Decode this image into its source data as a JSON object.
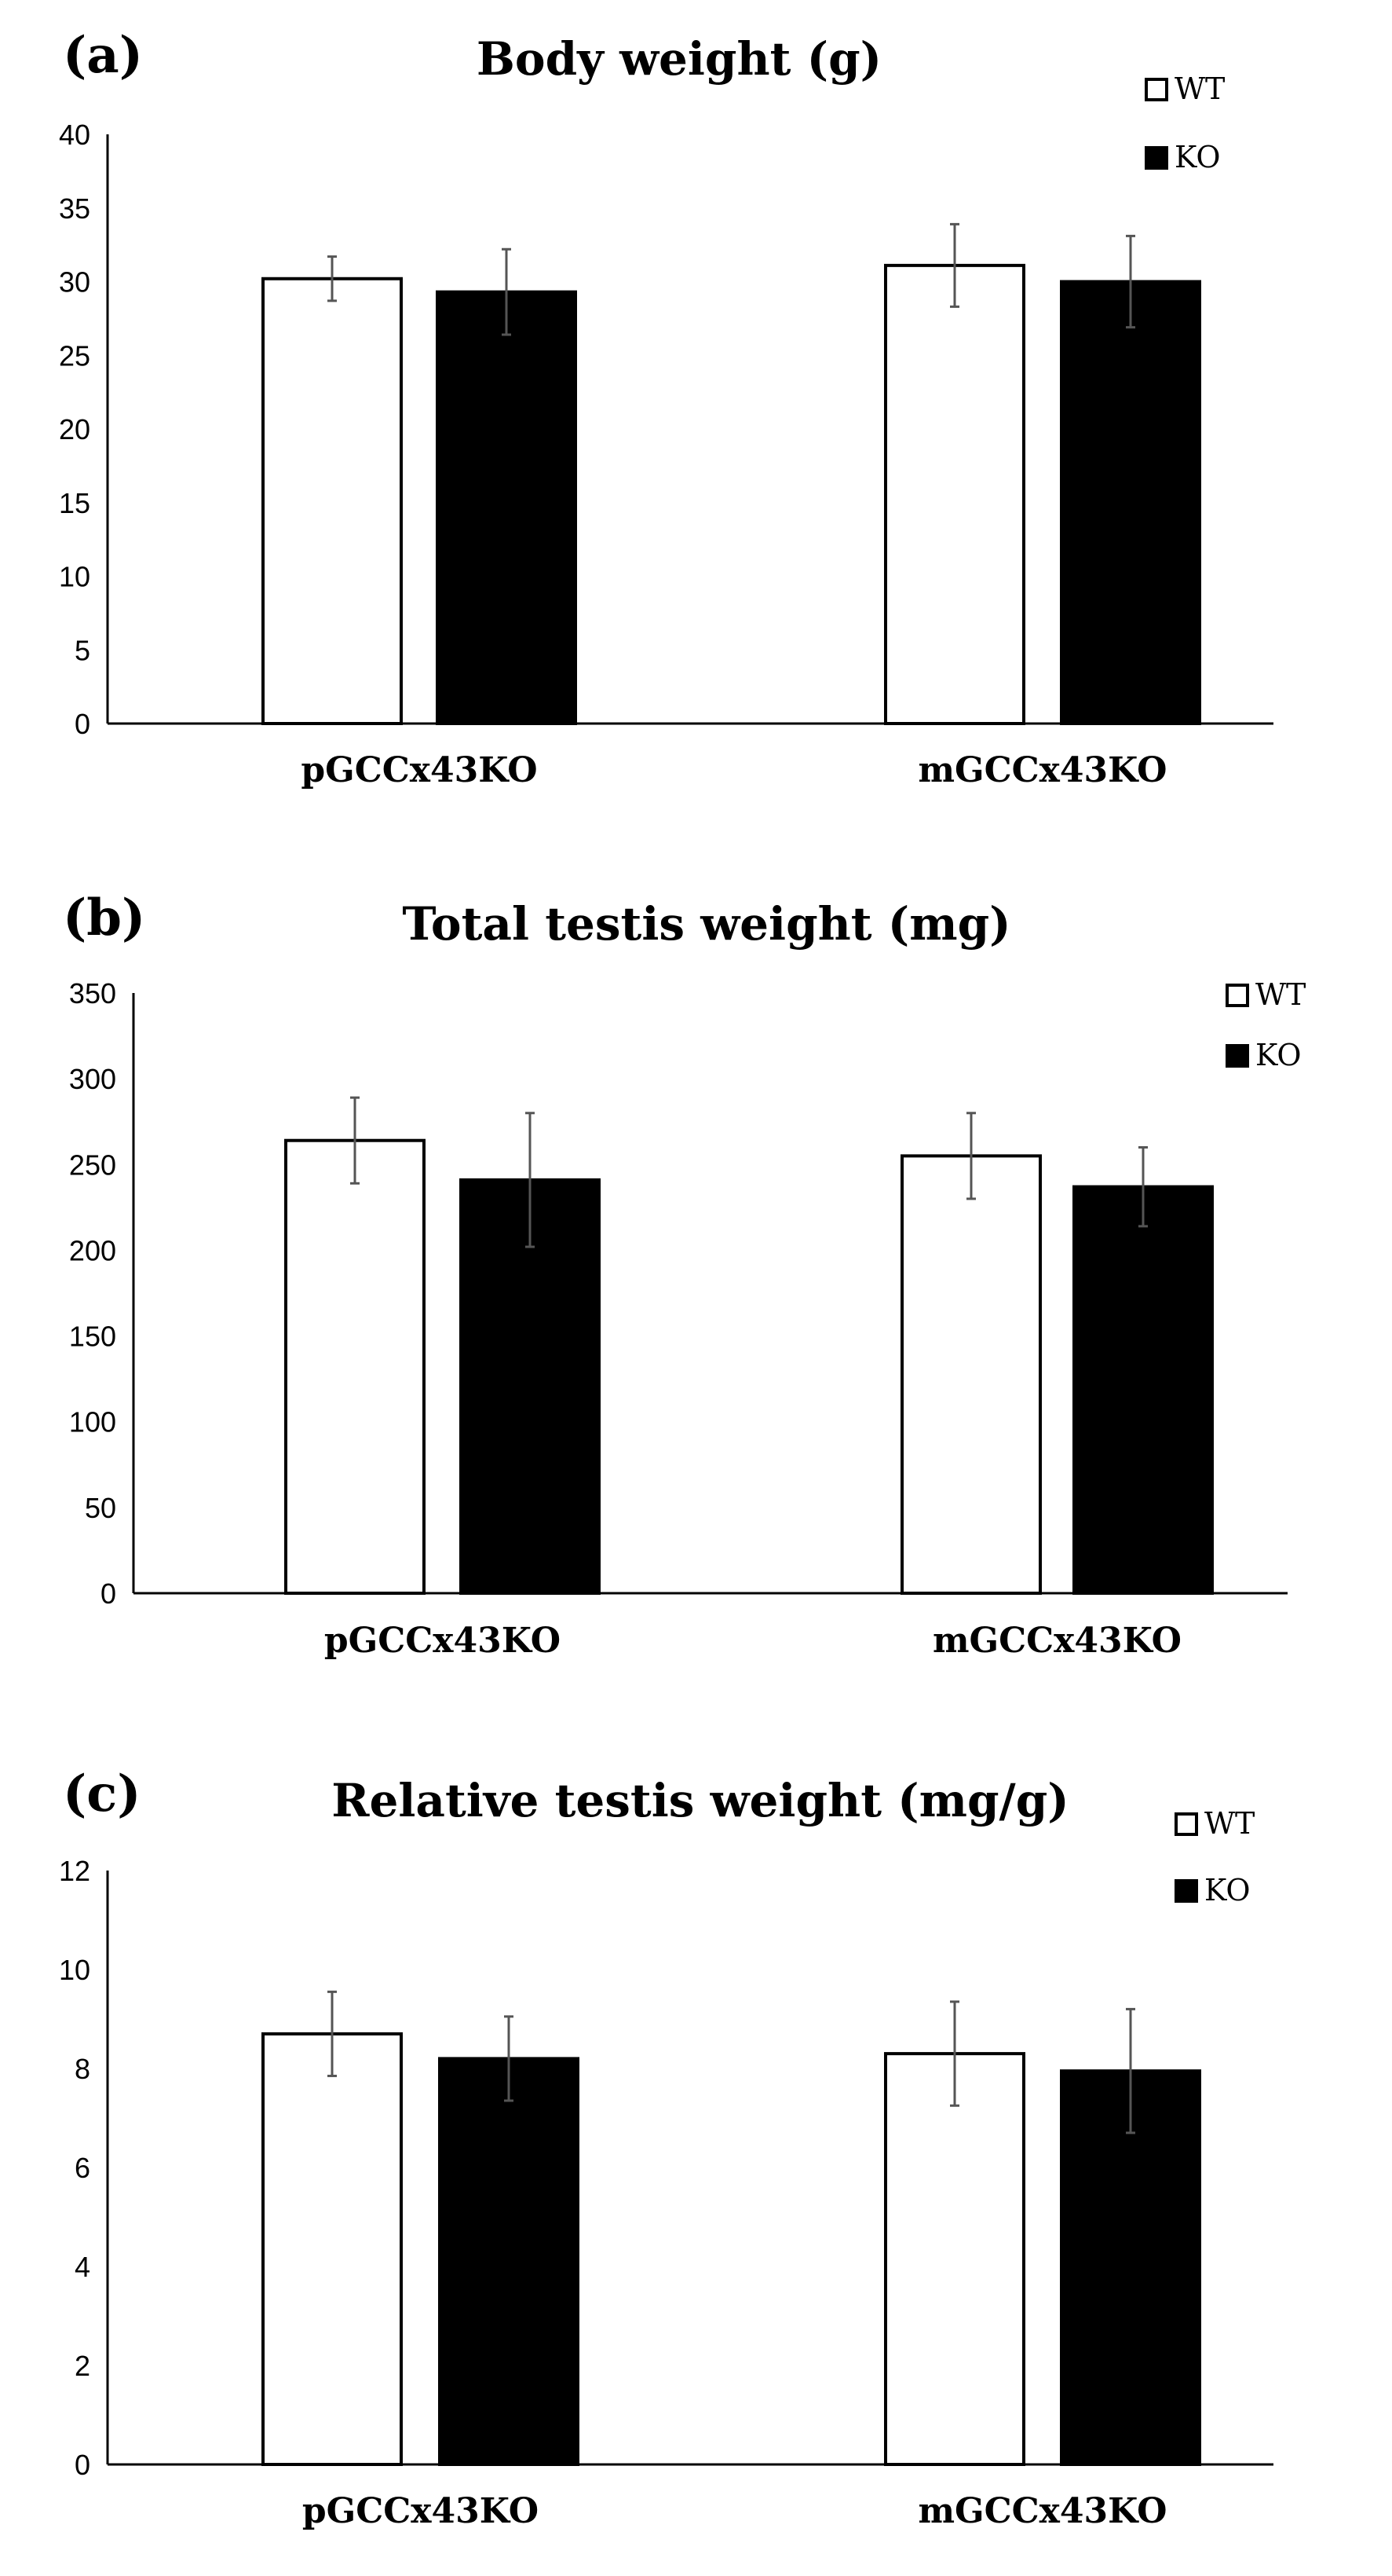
{
  "chart_data": [
    {
      "type": "bar",
      "panel": "(a)",
      "title": "Body weight (g)",
      "categories": [
        "pGCCx43KO",
        "mGCCx43KO"
      ],
      "series": [
        {
          "name": "WT",
          "values": [
            30.2,
            31.1
          ],
          "errors": [
            1.5,
            2.8
          ],
          "fill": "#ffffff"
        },
        {
          "name": "KO",
          "values": [
            29.3,
            30.0
          ],
          "errors": [
            2.9,
            3.1
          ],
          "fill": "#000000"
        }
      ],
      "yticks": [
        0,
        5,
        10,
        15,
        20,
        25,
        30,
        35,
        40
      ],
      "ylim": [
        0,
        40
      ],
      "xlabel": "",
      "ylabel": "",
      "legend": "top-right"
    },
    {
      "type": "bar",
      "panel": "(b)",
      "title": "Total testis weight (mg)",
      "categories": [
        "pGCCx43KO",
        "mGCCx43KO"
      ],
      "series": [
        {
          "name": "WT",
          "values": [
            264,
            255
          ],
          "errors": [
            25,
            25
          ],
          "fill": "#ffffff"
        },
        {
          "name": "KO",
          "values": [
            241,
            237
          ],
          "errors": [
            39,
            23
          ],
          "fill": "#000000"
        }
      ],
      "yticks": [
        0,
        50,
        100,
        150,
        200,
        250,
        300,
        350
      ],
      "ylim": [
        0,
        350
      ],
      "xlabel": "",
      "ylabel": "",
      "legend": "top-right"
    },
    {
      "type": "bar",
      "panel": "(c)",
      "title": "Relative testis weight (mg/g)",
      "categories": [
        "pGCCx43KO",
        "mGCCx43KO"
      ],
      "series": [
        {
          "name": "WT",
          "values": [
            8.7,
            8.3
          ],
          "errors": [
            0.85,
            1.05
          ],
          "fill": "#ffffff"
        },
        {
          "name": "KO",
          "values": [
            8.2,
            7.95
          ],
          "errors": [
            0.85,
            1.25
          ],
          "fill": "#000000"
        }
      ],
      "yticks": [
        0,
        2,
        4,
        6,
        8,
        10,
        12
      ],
      "ylim": [
        0,
        12
      ],
      "xlabel": "",
      "ylabel": "",
      "legend": "top-right"
    }
  ]
}
